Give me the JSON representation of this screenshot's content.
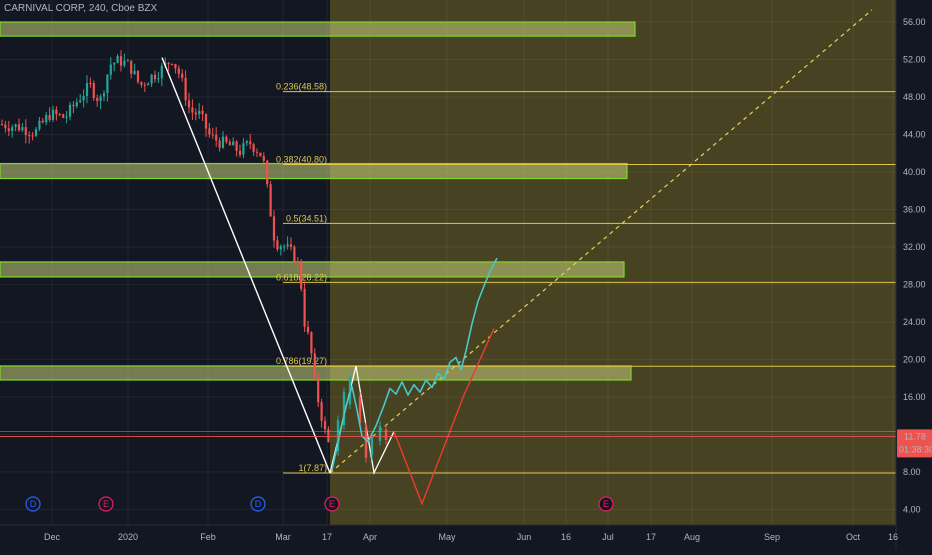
{
  "symbol": {
    "title": "CARNIVAL CORP, 240, Cboe BZX"
  },
  "chart_data": {
    "type": "candlestick",
    "ylim": [
      3.5,
      57.5
    ],
    "x_tick_labels": [
      "Dec",
      "2020",
      "Feb",
      "Mar",
      "17",
      "Apr",
      "May",
      "Jun",
      "16",
      "Jul",
      "17",
      "Aug",
      "Sep",
      "Oct",
      "16"
    ],
    "y_ticks": [
      4,
      8,
      12,
      16,
      20,
      24,
      28,
      32,
      36,
      40,
      44,
      48,
      52,
      56
    ],
    "y_tick_labels": [
      "4.00",
      "8.00",
      "12.00",
      "16.00",
      "20.00",
      "24.00",
      "28.00",
      "32.00",
      "36.00",
      "40.00",
      "44.00",
      "48.00",
      "52.00",
      "56.00"
    ],
    "fib_levels": [
      {
        "label": "0.236(48.58)",
        "value": 48.58
      },
      {
        "label": "0.382(40.80)",
        "value": 40.8
      },
      {
        "label": "0.5(34.51)",
        "value": 34.51
      },
      {
        "label": "0.618(28.22)",
        "value": 28.22
      },
      {
        "label": "0.786(19.27)",
        "value": 19.27
      },
      {
        "label": "1(7.87)",
        "value": 7.87
      }
    ],
    "zones": [
      {
        "low": 54.5,
        "high": 56.0
      },
      {
        "low": 39.3,
        "high": 40.9
      },
      {
        "low": 28.8,
        "high": 30.4
      },
      {
        "low": 17.8,
        "high": 19.3
      }
    ],
    "price_badge": {
      "value": 11.78,
      "label": "11.78",
      "countdown": "01:38:30",
      "color": "#ef5350"
    },
    "event_markers": [
      {
        "label": "D",
        "color": "#2962ff"
      },
      {
        "label": "E",
        "color": "#e91e63"
      },
      {
        "label": "D",
        "color": "#2962ff"
      },
      {
        "label": "E",
        "color": "#e91e63"
      },
      {
        "label": "E",
        "color": "#e91e63"
      }
    ],
    "colors": {
      "background": "#131722",
      "projection_shade": "#4a4423",
      "up_candle": "#26a69a",
      "down_candle": "#ef5350",
      "fib_line": "#e0c84a",
      "zone_border": "#7cd82a",
      "projection_cyan": "#45c9c9",
      "projection_red": "#ef3b2c",
      "impulse_line": "#ffffff",
      "trendline": "#e6d35a"
    }
  }
}
